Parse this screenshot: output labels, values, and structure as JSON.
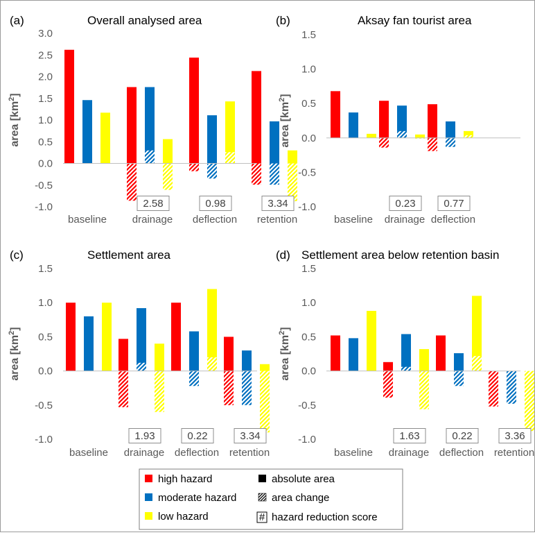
{
  "colors": {
    "high": "#ff0000",
    "moderate": "#0070c0",
    "low": "#ffff00",
    "axis": "#bfbfbf",
    "box": "#8c8c8c"
  },
  "chart_data": [
    {
      "panel": "(a)",
      "type": "bar",
      "title": "Overall analysed area",
      "ylabel": "area [km2]",
      "ylim": [
        -1.0,
        3.0
      ],
      "yticks": [
        "3.0",
        "2.5",
        "2.0",
        "1.5",
        "1.0",
        "0.5",
        "0.0",
        "-0.5",
        "-1.0"
      ],
      "categories": [
        "baseline",
        "drainage",
        "deflection",
        "retention"
      ],
      "series": [
        {
          "name": "high hazard",
          "key": "high",
          "absolute": [
            2.62,
            1.76,
            2.44,
            2.13
          ],
          "change": [
            null,
            -0.86,
            -0.18,
            -0.49
          ]
        },
        {
          "name": "moderate hazard",
          "key": "moderate",
          "absolute": [
            1.46,
            1.76,
            1.11,
            0.97
          ],
          "change": [
            null,
            0.3,
            -0.35,
            -0.49
          ]
        },
        {
          "name": "low hazard",
          "key": "low",
          "absolute": [
            1.17,
            0.56,
            1.43,
            0.3
          ],
          "change": [
            null,
            -0.61,
            0.26,
            -0.87
          ]
        }
      ],
      "scores": [
        "",
        "2.58",
        "0.98",
        "3.34"
      ]
    },
    {
      "panel": "(b)",
      "type": "bar",
      "title": "Aksay fan tourist area",
      "ylabel": "area [km2]",
      "ylim": [
        -1.0,
        1.5
      ],
      "yticks": [
        "1.5",
        "1.0",
        "0.5",
        "0.0",
        "-0.5",
        "-1.0"
      ],
      "categories": [
        "baseline",
        "drainage",
        "deflection"
      ],
      "series": [
        {
          "name": "high hazard",
          "key": "high",
          "absolute": [
            0.68,
            0.54,
            0.49
          ],
          "change": [
            null,
            -0.14,
            -0.19
          ]
        },
        {
          "name": "moderate hazard",
          "key": "moderate",
          "absolute": [
            0.37,
            0.47,
            0.24
          ],
          "change": [
            null,
            0.1,
            -0.13
          ]
        },
        {
          "name": "low hazard",
          "key": "low",
          "absolute": [
            0.06,
            0.05,
            0.1
          ],
          "change": [
            null,
            -0.01,
            0.04
          ]
        }
      ],
      "scores": [
        "",
        "0.23",
        "0.77"
      ]
    },
    {
      "panel": "(c)",
      "type": "bar",
      "title": "Settlement area",
      "ylabel": "area [km2]",
      "ylim": [
        -1.0,
        1.5
      ],
      "yticks": [
        "1.5",
        "1.0",
        "0.5",
        "0.0",
        "-0.5",
        "-1.0"
      ],
      "categories": [
        "baseline",
        "drainage",
        "deflection",
        "retention"
      ],
      "series": [
        {
          "name": "high hazard",
          "key": "high",
          "absolute": [
            1.0,
            0.47,
            1.0,
            0.5
          ],
          "change": [
            null,
            -0.53,
            0.0,
            -0.5
          ]
        },
        {
          "name": "moderate hazard",
          "key": "moderate",
          "absolute": [
            0.8,
            0.92,
            0.58,
            0.3
          ],
          "change": [
            null,
            0.12,
            -0.22,
            -0.5
          ]
        },
        {
          "name": "low hazard",
          "key": "low",
          "absolute": [
            1.0,
            0.4,
            1.2,
            0.1
          ],
          "change": [
            null,
            -0.6,
            0.2,
            -0.9
          ]
        }
      ],
      "scores": [
        "",
        "1.93",
        "0.22",
        "3.34"
      ]
    },
    {
      "panel": "(d)",
      "type": "bar",
      "title": "Settlement area below retention basin",
      "ylabel": "area [km2]",
      "ylim": [
        -1.0,
        1.5
      ],
      "yticks": [
        "1.5",
        "1.0",
        "0.5",
        "0.0",
        "-0.5",
        "-1.0"
      ],
      "categories": [
        "baseline",
        "drainage",
        "deflection",
        "retention"
      ],
      "series": [
        {
          "name": "high hazard",
          "key": "high",
          "absolute": [
            0.52,
            0.13,
            0.52,
            0.0
          ],
          "change": [
            null,
            -0.39,
            0.0,
            -0.52
          ]
        },
        {
          "name": "moderate hazard",
          "key": "moderate",
          "absolute": [
            0.48,
            0.54,
            0.26,
            0.0
          ],
          "change": [
            null,
            0.06,
            -0.22,
            -0.48
          ]
        },
        {
          "name": "low hazard",
          "key": "low",
          "absolute": [
            0.88,
            0.32,
            1.1,
            0.0
          ],
          "change": [
            null,
            -0.56,
            0.22,
            -0.88
          ]
        }
      ],
      "scores": [
        "",
        "1.63",
        "0.22",
        "3.36"
      ]
    }
  ],
  "legend": {
    "items": [
      {
        "key": "high",
        "label": "high hazard"
      },
      {
        "key": "moderate",
        "label": "moderate hazard"
      },
      {
        "key": "low",
        "label": "low hazard"
      }
    ],
    "absolute_label": "absolute area",
    "change_label": "area change",
    "score_symbol": "#",
    "score_label": "hazard reduction score"
  }
}
